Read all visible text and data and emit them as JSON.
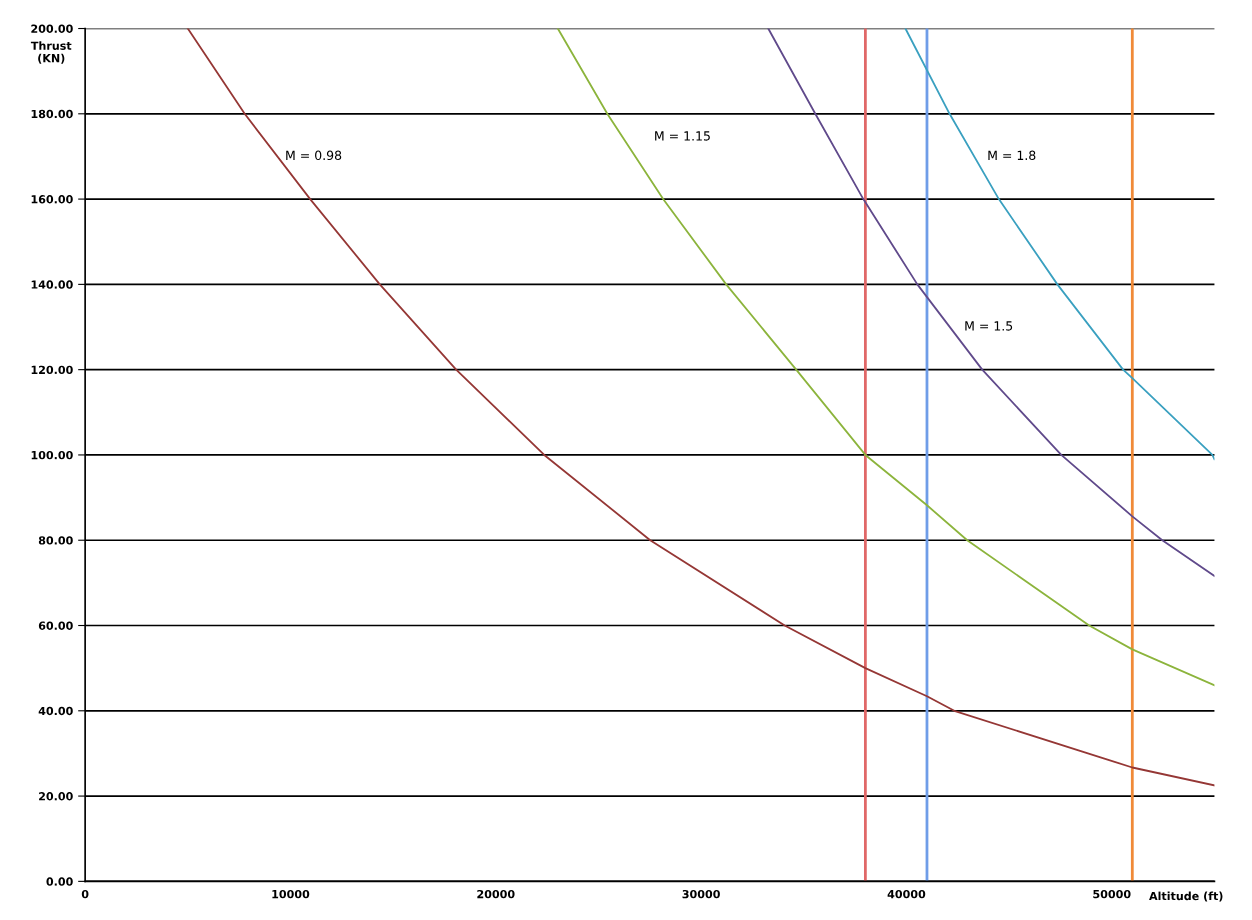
{
  "chart_data": {
    "type": "line",
    "xlabel": "Altitude (ft)",
    "ylabel": "Thrust\n(KN)",
    "xlim": [
      0,
      55000
    ],
    "xticks": [
      0,
      10000,
      20000,
      30000,
      40000,
      50000
    ],
    "ylim": [
      0,
      200
    ],
    "yticks": [
      {
        "value": 0,
        "label": "0.00"
      },
      {
        "value": 20,
        "label": "20.00"
      },
      {
        "value": 40,
        "label": "40.00"
      },
      {
        "value": 60,
        "label": "60.00"
      },
      {
        "value": 80,
        "label": "80.00"
      },
      {
        "value": 100,
        "label": "100.00"
      },
      {
        "value": 120,
        "label": "120.00"
      },
      {
        "value": 140,
        "label": "140.00"
      },
      {
        "value": 160,
        "label": "160.00"
      },
      {
        "value": 180,
        "label": "180.00"
      },
      {
        "value": 200,
        "label": "200.00"
      }
    ],
    "grid": "y",
    "marker": "none",
    "line_style": "solid",
    "series": [
      {
        "name": "M = 0.98",
        "color": "#953735",
        "x": [
          5000,
          7770,
          10960,
          14350,
          18070,
          22360,
          27520,
          34070,
          38000,
          41000,
          42330,
          51000,
          55000
        ],
        "values": [
          200,
          180,
          160,
          140,
          120,
          100,
          80,
          60,
          50,
          43.4,
          40,
          26.7,
          22.5
        ]
      },
      {
        "name": "M = 1.15",
        "color": "#8cb43c",
        "x": [
          23020,
          25430,
          28150,
          31220,
          34630,
          38000,
          41000,
          42960,
          48900,
          51000,
          55000
        ],
        "values": [
          200,
          180,
          160,
          140,
          120,
          100,
          88.2,
          80,
          60,
          54.4,
          46
        ]
      },
      {
        "name": "M = 1.5",
        "color": "#604a8b",
        "x": [
          33270,
          35560,
          37900,
          40530,
          43690,
          47540,
          51000,
          52460,
          55000
        ],
        "values": [
          200,
          180,
          160,
          140,
          120,
          100,
          85.6,
          80,
          71.6
        ]
      },
      {
        "name": "M = 1.8",
        "color": "#3aa0c0",
        "x": [
          39950,
          42100,
          44500,
          47350,
          50550,
          51000,
          54900,
          55000
        ],
        "values": [
          200,
          180,
          160,
          140,
          120,
          118,
          100,
          99
        ]
      }
    ],
    "ref_lines": [
      {
        "axis": "x",
        "value": 38000,
        "color": "#e06868"
      },
      {
        "axis": "x",
        "value": 41000,
        "color": "#6f9de8"
      },
      {
        "axis": "x",
        "value": 51000,
        "color": "#f08a38"
      }
    ],
    "legend": false
  }
}
